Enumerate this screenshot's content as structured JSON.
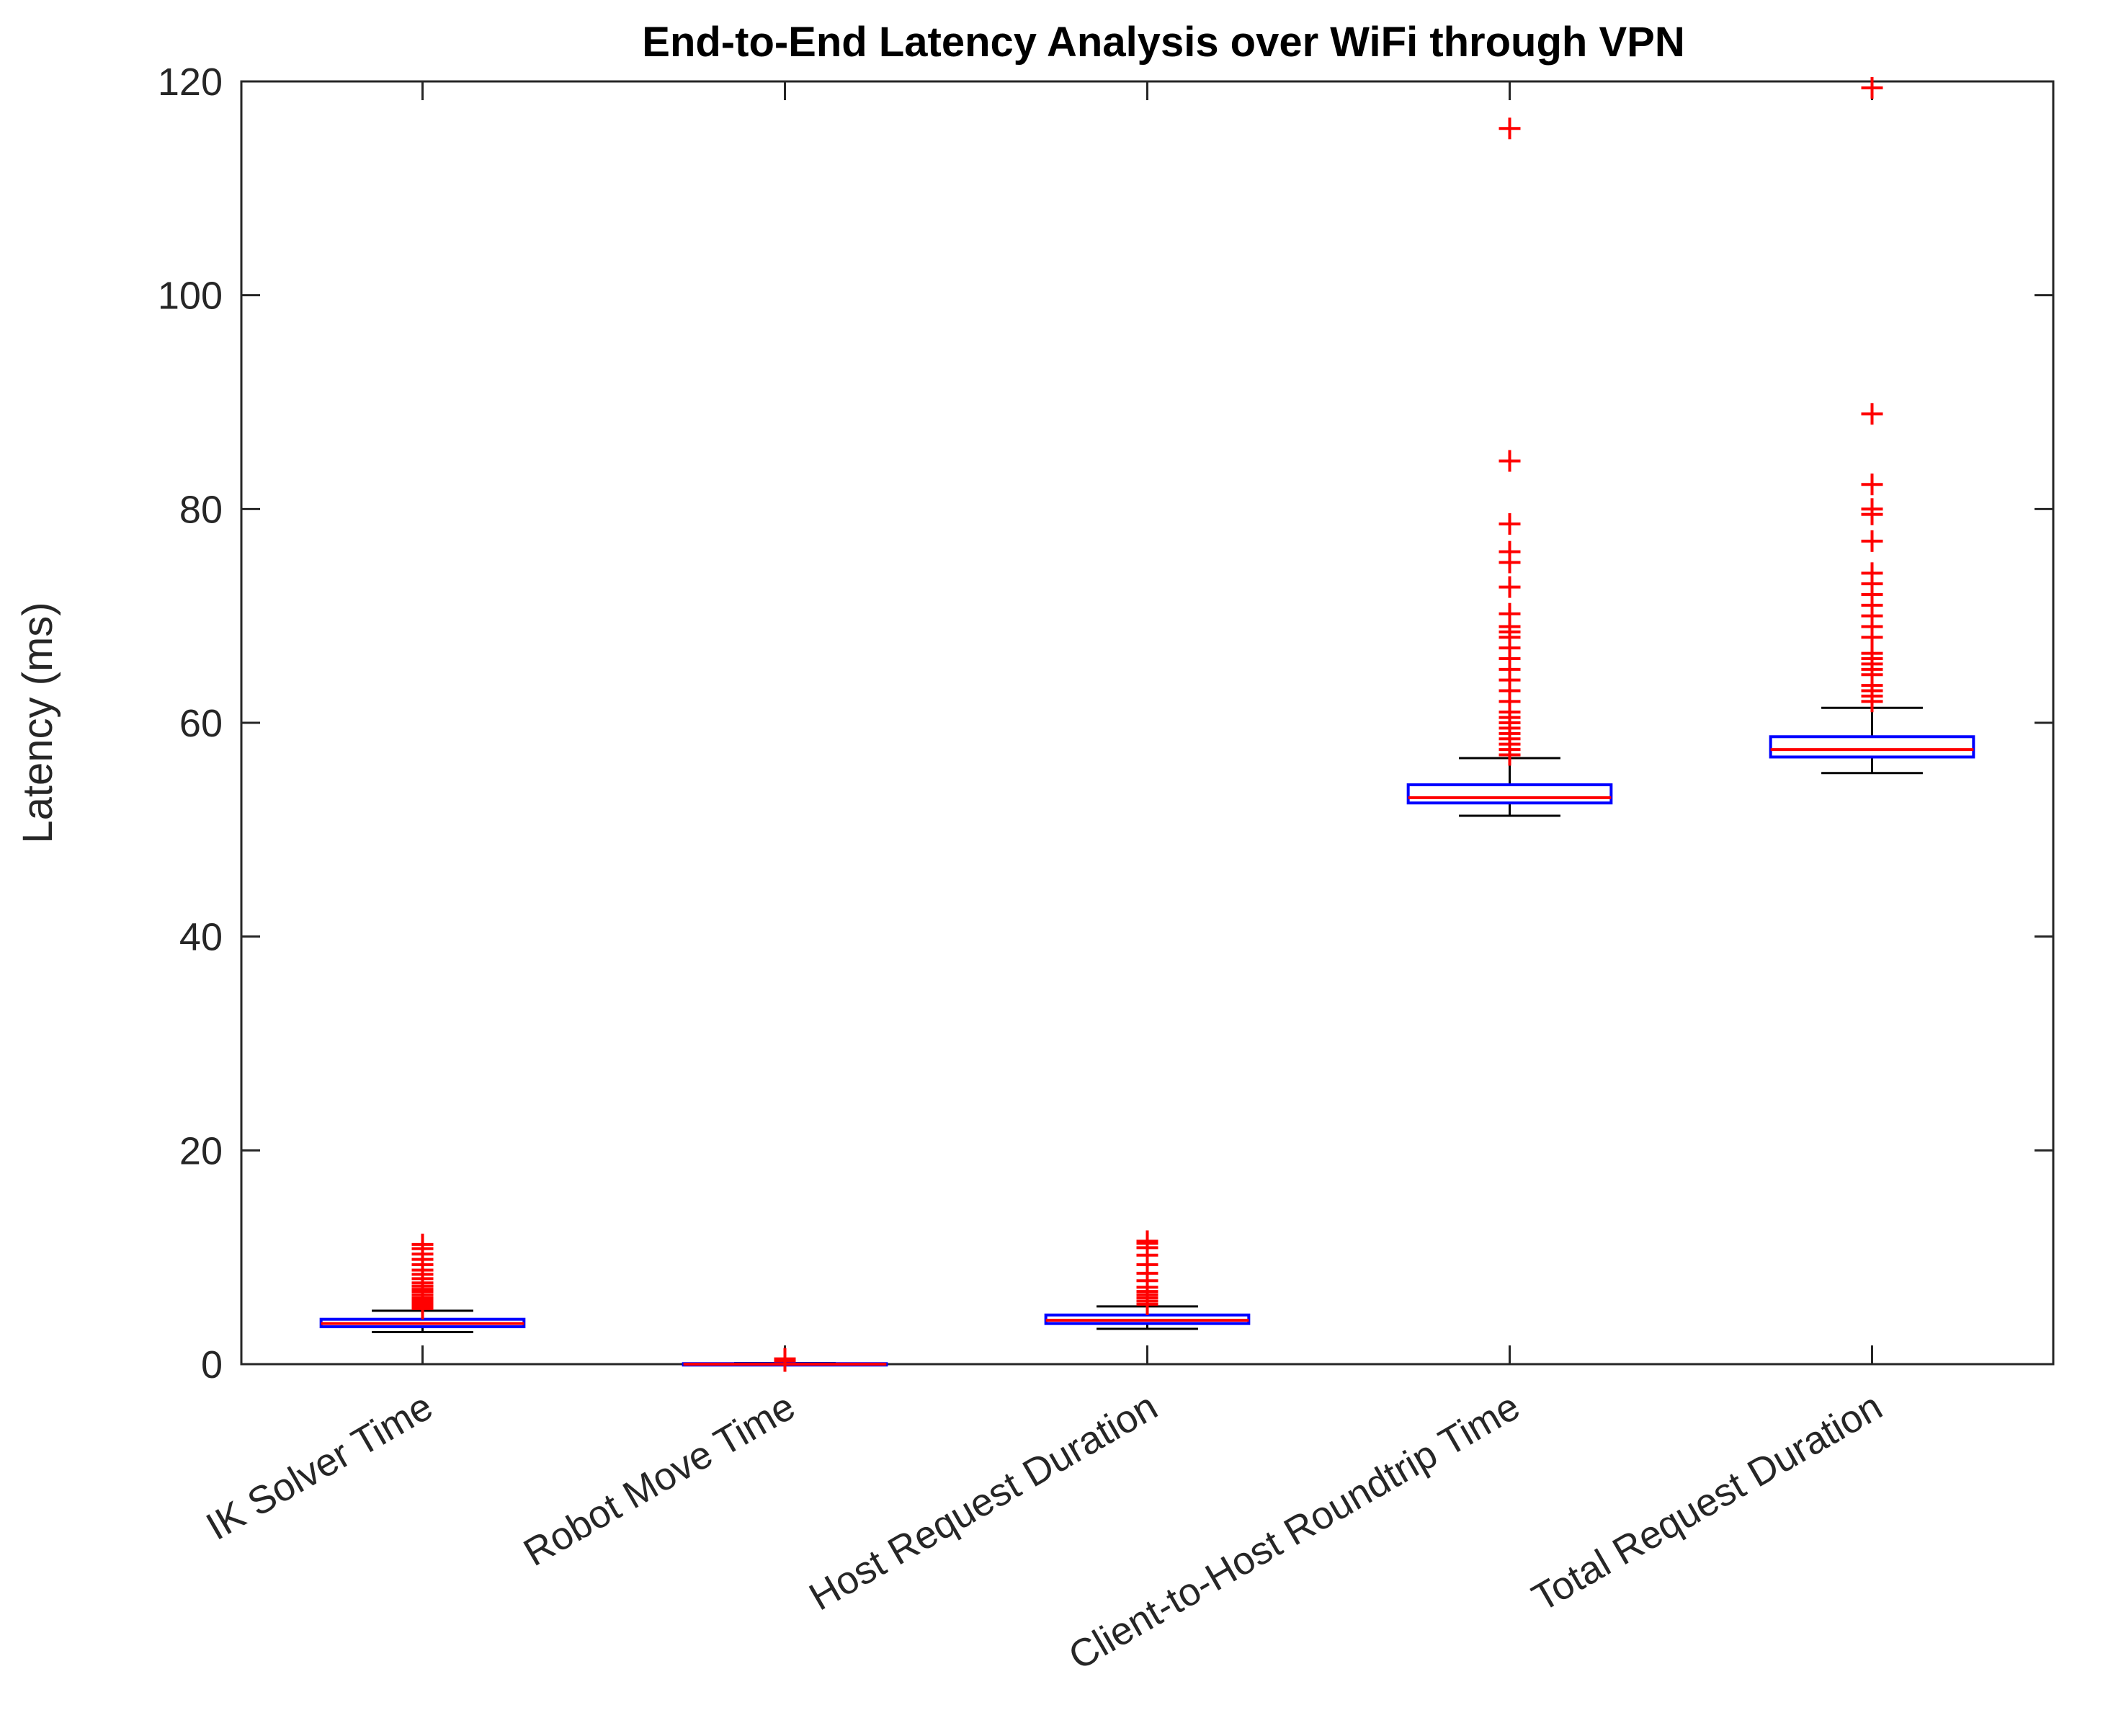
{
  "chart_data": {
    "type": "box",
    "title": "End-to-End Latency Analysis over WiFi through VPN",
    "xlabel": "",
    "ylabel": "Latency (ms)",
    "ylim": [
      0,
      120
    ],
    "yticks": [
      0,
      20,
      40,
      60,
      80,
      100,
      120
    ],
    "grid": false,
    "colors": {
      "box": "#0000ff",
      "median": "#ff0000",
      "whisker": "#000000",
      "outlier": "#ff0000",
      "axis": "#262626"
    },
    "categories": [
      "IK Solver Time",
      "Robot Move Time",
      "Host Request Duration",
      "Client-to-Host Roundtrip Time",
      "Total Request Duration"
    ],
    "boxes": [
      {
        "name": "IK Solver Time",
        "whisker_low": 3.0,
        "q1": 3.5,
        "median": 3.8,
        "q3": 4.2,
        "whisker_high": 5.0,
        "outliers": [
          5.2,
          5.4,
          5.6,
          5.8,
          6.0,
          6.2,
          6.5,
          6.8,
          7.0,
          7.3,
          7.6,
          8.0,
          8.4,
          8.8,
          9.3,
          9.8,
          10.3,
          10.8,
          11.2
        ]
      },
      {
        "name": "Robot Move Time",
        "whisker_low": 0.0,
        "q1": 0.0,
        "median": 0.0,
        "q3": 0.05,
        "whisker_high": 0.1,
        "outliers": [
          0.3,
          0.5
        ]
      },
      {
        "name": "Host Request Duration",
        "whisker_low": 3.3,
        "q1": 3.8,
        "median": 4.1,
        "q3": 4.6,
        "whisker_high": 5.4,
        "outliers": [
          5.6,
          5.9,
          6.2,
          6.5,
          6.8,
          7.2,
          7.8,
          8.5,
          9.3,
          10.2,
          10.9,
          11.3,
          11.5
        ]
      },
      {
        "name": "Client-to-Host Roundtrip Time",
        "whisker_low": 51.3,
        "q1": 52.5,
        "median": 53.0,
        "q3": 54.2,
        "whisker_high": 56.7,
        "outliers": [
          57.0,
          57.5,
          58.0,
          58.5,
          59.0,
          59.5,
          60.0,
          60.5,
          61.0,
          62.0,
          63.0,
          64.0,
          65.0,
          66.0,
          67.0,
          68.0,
          68.5,
          69.0,
          70.2,
          72.7,
          75.0,
          76.0,
          78.6,
          84.5,
          115.6
        ]
      },
      {
        "name": "Total Request Duration",
        "whisker_low": 55.3,
        "q1": 56.8,
        "median": 57.5,
        "q3": 58.7,
        "whisker_high": 61.4,
        "outliers": [
          62.0,
          62.5,
          63.0,
          63.5,
          64.5,
          65.0,
          65.5,
          66.0,
          66.5,
          68.0,
          69.0,
          70.0,
          71.0,
          72.0,
          73.0,
          74.0,
          77.0,
          79.5,
          80.0,
          82.3,
          88.9,
          119.4
        ]
      }
    ]
  }
}
